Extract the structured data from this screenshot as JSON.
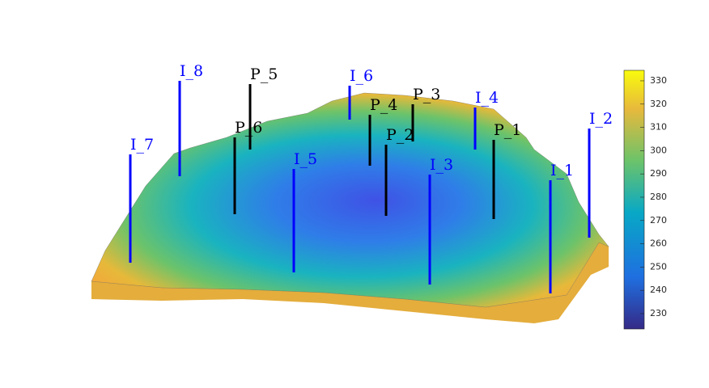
{
  "chart_data": {
    "type": "reservoir",
    "wells": [
      {
        "name": "I_7",
        "color": "#0000ff"
      },
      {
        "name": "I_8",
        "color": "#0000ff"
      },
      {
        "name": "P_5",
        "color": "#000000"
      },
      {
        "name": "P_6",
        "color": "#000000"
      },
      {
        "name": "I_5",
        "color": "#0000ff"
      },
      {
        "name": "I_6",
        "color": "#0000ff"
      },
      {
        "name": "P_4",
        "color": "#000000"
      },
      {
        "name": "P_2",
        "color": "#000000"
      },
      {
        "name": "P_3",
        "color": "#000000"
      },
      {
        "name": "I_3",
        "color": "#0000ff"
      },
      {
        "name": "I_4",
        "color": "#0000ff"
      },
      {
        "name": "P_1",
        "color": "#000000"
      },
      {
        "name": "I_1",
        "color": "#0000ff"
      },
      {
        "name": "I_2",
        "color": "#0000ff"
      }
    ],
    "colorbar": {
      "ylim": [
        223.4,
        334.5
      ],
      "yticks": [
        230,
        240,
        250,
        260,
        270,
        280,
        290,
        300,
        310,
        320,
        330
      ]
    }
  }
}
